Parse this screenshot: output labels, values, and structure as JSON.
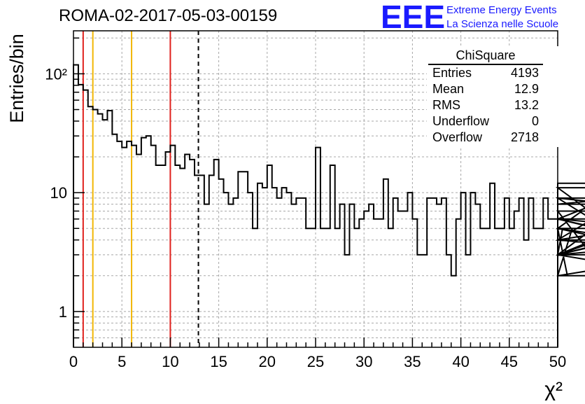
{
  "header": {
    "run_title": "ROMA-02-2017-05-03-00159",
    "logo_text": "EEE",
    "logo_line1": "Extreme Energy Events",
    "logo_line2": "La Scienza nelle Scuole",
    "logo_color": "#1a1aff"
  },
  "stats": {
    "title": "ChiSquare",
    "rows": [
      {
        "label": "Entries",
        "value": "4193"
      },
      {
        "label": "Mean",
        "value": "12.9"
      },
      {
        "label": "RMS",
        "value": "13.2"
      },
      {
        "label": "Underflow",
        "value": "0"
      },
      {
        "label": "Overflow",
        "value": "2718"
      }
    ]
  },
  "chart_data": {
    "type": "step-histogram",
    "xlabel": "χ²",
    "ylabel": "Entries/bin",
    "xlim": [
      0,
      50
    ],
    "ylim": [
      0.5,
      230
    ],
    "y_scale": "log",
    "grid": true,
    "x_ticks": [
      0,
      5,
      10,
      15,
      20,
      25,
      30,
      35,
      40,
      45,
      50
    ],
    "y_tick_labels": [
      {
        "value": 1,
        "label": "1"
      },
      {
        "value": 10,
        "label": "10"
      },
      {
        "value": 100,
        "label": "10²"
      }
    ],
    "bin_width": 0.5,
    "values": [
      119,
      81,
      73,
      53,
      50,
      46,
      41,
      49,
      31,
      27,
      24,
      27,
      25,
      21,
      29,
      30,
      25,
      17,
      17,
      22,
      25,
      17,
      16,
      21,
      19,
      14,
      14,
      8,
      14,
      19,
      13,
      10,
      8,
      9,
      15,
      15,
      10,
      5,
      12,
      11,
      17,
      11,
      9,
      11,
      10,
      8,
      9,
      9,
      5,
      5,
      24,
      5,
      5,
      17,
      5,
      8,
      3,
      8,
      5,
      6,
      7,
      8,
      6,
      6,
      13,
      5,
      9,
      7,
      7,
      10,
      6,
      3,
      3,
      9,
      9,
      8,
      9,
      3,
      2,
      6,
      10,
      3,
      10,
      8,
      5,
      5,
      12,
      5,
      5,
      9,
      5,
      7,
      9,
      4,
      9,
      5,
      5,
      9,
      6,
      6,
      3,
      5,
      2,
      5,
      5,
      7,
      7,
      3,
      3,
      3,
      6,
      9,
      8,
      9,
      4,
      5,
      4,
      4,
      11,
      3,
      3,
      6,
      5,
      5,
      5,
      3,
      2,
      3,
      3,
      3,
      6,
      3,
      6,
      3,
      4,
      3,
      12
    ],
    "vertical_lines": [
      {
        "x": 1,
        "color": "#e0201c",
        "style": "solid"
      },
      {
        "x": 2,
        "color": "#f2b705",
        "style": "solid"
      },
      {
        "x": 6,
        "color": "#f2b705",
        "style": "solid"
      },
      {
        "x": 10,
        "color": "#e0201c",
        "style": "solid"
      },
      {
        "x": 12.9,
        "color": "#000000",
        "style": "dashed"
      }
    ]
  }
}
